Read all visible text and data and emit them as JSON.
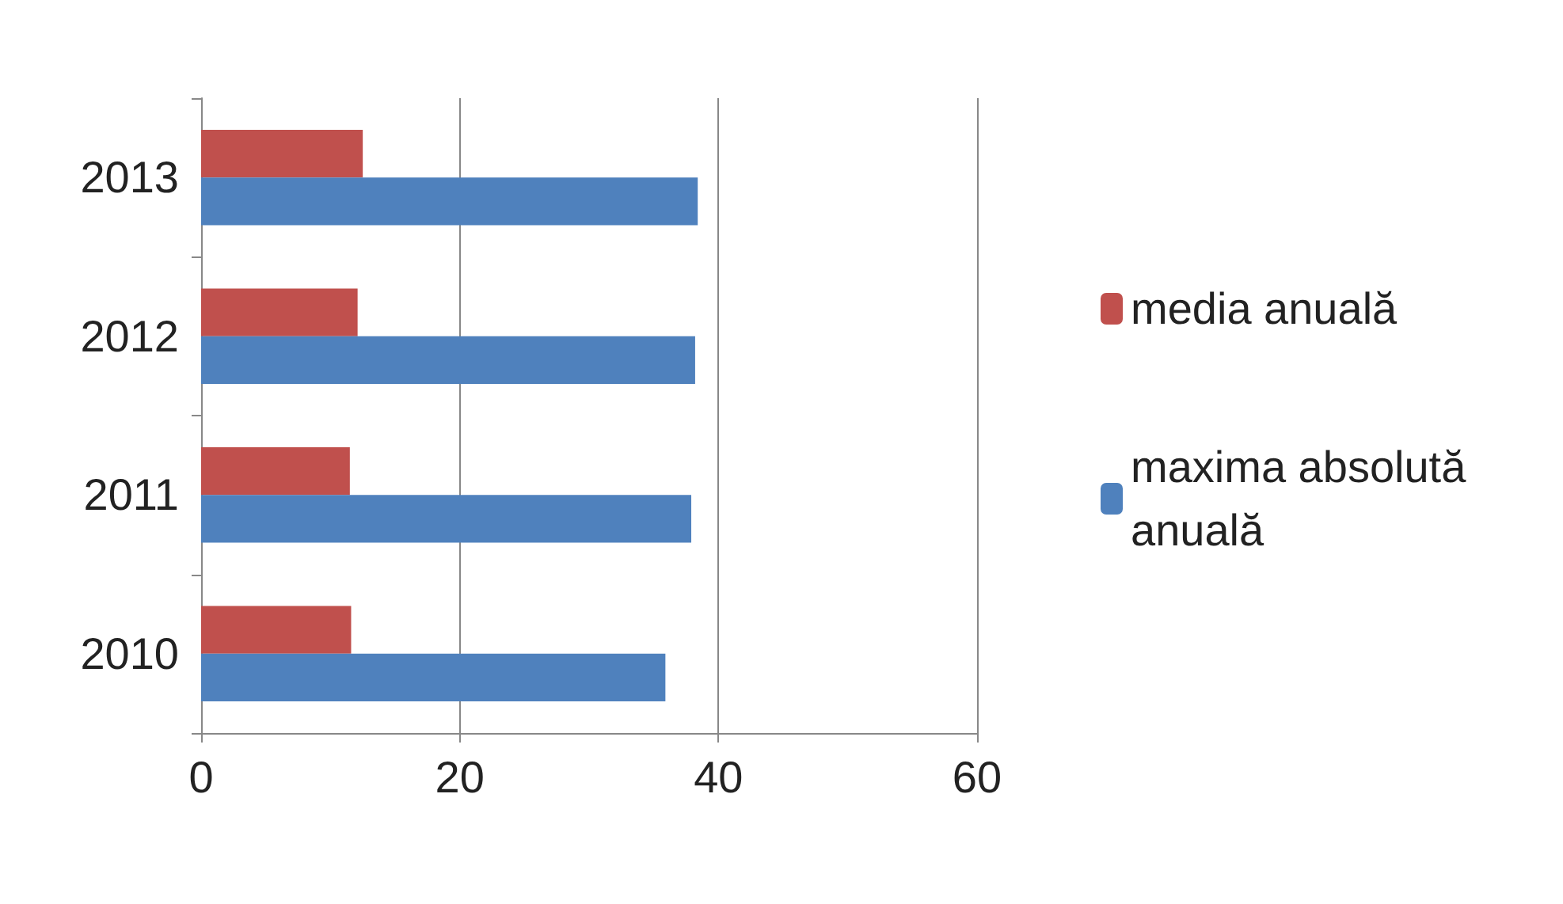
{
  "chart_data": {
    "type": "bar",
    "orientation": "horizontal",
    "categories": [
      "2013",
      "2012",
      "2011",
      "2010"
    ],
    "series": [
      {
        "name": "media anuală",
        "color": "#c0504d",
        "values": [
          12.5,
          12.1,
          11.5,
          11.6
        ]
      },
      {
        "name": "maxima absolută anuală",
        "color": "#4f81bd",
        "values": [
          38.4,
          38.2,
          37.9,
          35.9
        ]
      }
    ],
    "xlim": [
      0,
      60
    ],
    "xticks": [
      0,
      20,
      40,
      60
    ],
    "grid": "x",
    "legend": "right"
  }
}
